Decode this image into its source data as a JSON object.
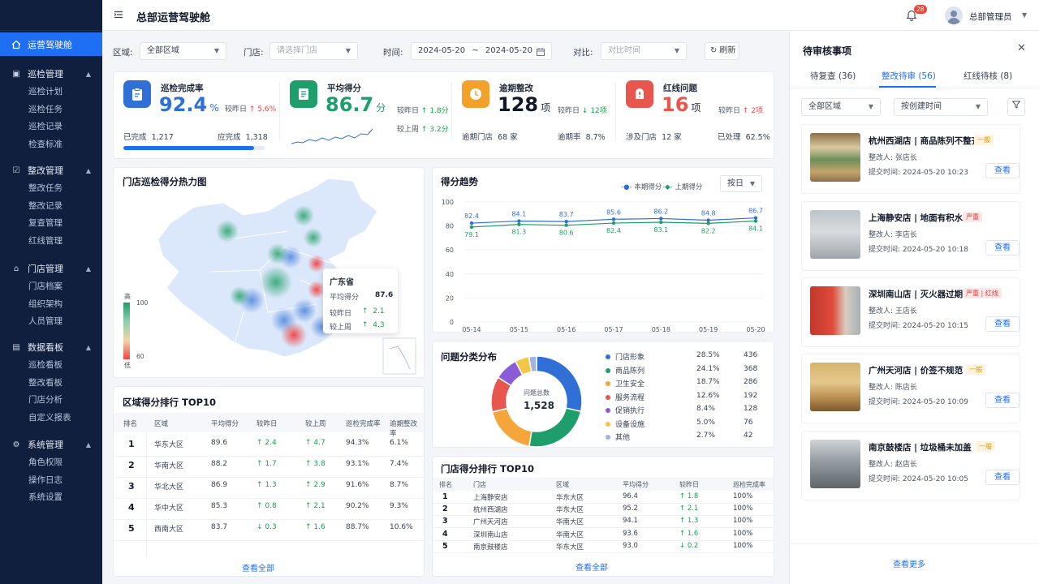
{
  "app": {
    "title": "总部运营驾驶舱",
    "user": "总部管理员",
    "notifications": "28"
  },
  "sidebar": {
    "active": "运营驾驶舱",
    "groups": [
      {
        "label": "巡检管理",
        "items": [
          "巡检计划",
          "巡检任务",
          "巡检记录",
          "检查标准"
        ]
      },
      {
        "label": "整改管理",
        "items": [
          "整改任务",
          "整改记录",
          "复查管理",
          "红线管理"
        ]
      },
      {
        "label": "门店管理",
        "items": [
          "门店档案",
          "组织架构",
          "人员管理"
        ]
      },
      {
        "label": "数据看板",
        "items": [
          "巡检看板",
          "整改看板",
          "门店分析",
          "自定义报表"
        ]
      },
      {
        "label": "系统管理",
        "items": [
          "角色权限",
          "操作日志",
          "系统设置"
        ]
      }
    ]
  },
  "filters": {
    "region_label": "区域:",
    "region_value": "全部区域",
    "store_label": "门店:",
    "store_placeholder": "请选择门店",
    "time_label": "时间:",
    "date_from": "2024-05-20",
    "date_sep": "~",
    "date_to": "2024-05-20",
    "compare_label": "对比:",
    "compare_placeholder": "对比时间",
    "refresh": "刷新"
  },
  "kpis": {
    "completion": {
      "title": "巡检完成率",
      "value": "92.4",
      "unit": "%",
      "cmp_label": "较昨日",
      "cmp_value": "5.6%",
      "done_label": "已完成",
      "done_value": "1,217",
      "due_label": "应完成",
      "due_value": "1,318",
      "progress": 0.924
    },
    "score": {
      "title": "平均得分",
      "value": "86.7",
      "unit": "分",
      "cmp1_label": "较昨日",
      "cmp1_value": "1.8分",
      "cmp2_label": "较上周",
      "cmp2_value": "3.2分"
    },
    "overdue": {
      "title": "逾期整改",
      "value": "128",
      "unit": "项",
      "cmp_label": "较昨日",
      "cmp_value": "12项",
      "stores_label": "逾期门店",
      "stores_value": "68 家",
      "rate_label": "逾期率",
      "rate_value": "8.7%"
    },
    "redline": {
      "title": "红线问题",
      "value": "16",
      "unit": "项",
      "cmp_label": "较昨日",
      "cmp_value": "2项",
      "stores_label": "涉及门店",
      "stores_value": "12 家",
      "handled_label": "已处理",
      "handled_value": "62.5%"
    }
  },
  "heatmap": {
    "title": "门店巡检得分热力图",
    "legend_high": "高",
    "legend_low": "低",
    "legend_max": "100",
    "legend_min": "60",
    "tooltip": {
      "province": "广东省",
      "score_label": "平均得分",
      "score": "87.6",
      "d_label": "较昨日",
      "d_value": "2.1",
      "w_label": "较上周",
      "w_value": "4.3"
    }
  },
  "trend": {
    "title": "得分趋势",
    "legend_current": "本期得分",
    "legend_prev": "上期得分",
    "period": "按日"
  },
  "chart_data": {
    "type": "line",
    "x": [
      "05-14",
      "05-15",
      "05-16",
      "05-17",
      "05-18",
      "05-19",
      "05-20"
    ],
    "series": [
      {
        "name": "本期得分",
        "values": [
          82.4,
          84.1,
          83.7,
          85.6,
          86.2,
          84.8,
          86.7
        ],
        "color": "#2f6fd6"
      },
      {
        "name": "上期得分",
        "values": [
          79.1,
          81.3,
          80.6,
          82.4,
          83.1,
          82.2,
          84.1
        ],
        "color": "#1e9e6a"
      }
    ],
    "ylim": [
      0,
      100
    ],
    "yticks": [
      "0",
      "20",
      "40",
      "60",
      "80",
      "100"
    ]
  },
  "donut": {
    "title": "问题分类分布",
    "center_label": "问题总数",
    "center_value": "1,528",
    "items": [
      {
        "name": "门店形象",
        "pct": "28.5%",
        "count": "436",
        "color": "#2f6fd6",
        "value": 28.5
      },
      {
        "name": "商品陈列",
        "pct": "24.1%",
        "count": "368",
        "color": "#1e9e6a",
        "value": 24.1
      },
      {
        "name": "卫生安全",
        "pct": "18.7%",
        "count": "286",
        "color": "#f5a53a",
        "value": 18.7
      },
      {
        "name": "服务流程",
        "pct": "12.6%",
        "count": "192",
        "color": "#e8574e",
        "value": 12.6
      },
      {
        "name": "促销执行",
        "pct": "8.4%",
        "count": "128",
        "color": "#8b5cd6",
        "value": 8.4
      },
      {
        "name": "设备设施",
        "pct": "5.0%",
        "count": "76",
        "color": "#f3c646",
        "value": 5.0
      },
      {
        "name": "其他",
        "pct": "2.7%",
        "count": "42",
        "color": "#9fb4e0",
        "value": 2.7
      }
    ]
  },
  "region_rank": {
    "title": "区域得分排行 TOP10",
    "headers": [
      "排名",
      "区域",
      "平均得分",
      "较昨日",
      "较上周",
      "巡检完成率",
      "逾期整改率"
    ],
    "rows": [
      [
        "1",
        "华东大区",
        "89.6",
        "↑ 2.4",
        "↑ 4.7",
        "94.3%",
        "6.1%"
      ],
      [
        "2",
        "华南大区",
        "88.2",
        "↑ 1.7",
        "↑ 3.8",
        "93.1%",
        "7.4%"
      ],
      [
        "3",
        "华北大区",
        "86.9",
        "↑ 1.3",
        "↑ 2.9",
        "91.6%",
        "8.7%"
      ],
      [
        "4",
        "华中大区",
        "85.3",
        "↑ 0.8",
        "↑ 2.1",
        "90.2%",
        "9.3%"
      ],
      [
        "5",
        "西南大区",
        "83.7",
        "↓ 0.3",
        "↑ 1.6",
        "88.7%",
        "10.6%"
      ]
    ],
    "view_all": "查看全部"
  },
  "store_rank": {
    "title": "门店得分排行 TOP10",
    "headers": [
      "排名",
      "门店",
      "区域",
      "平均得分",
      "较昨日",
      "巡检完成率"
    ],
    "rows": [
      [
        "1",
        "上海静安店",
        "华东大区",
        "96.4",
        "↑ 1.8",
        "100%"
      ],
      [
        "2",
        "杭州西湖店",
        "华东大区",
        "95.2",
        "↑ 2.1",
        "100%"
      ],
      [
        "3",
        "广州天河店",
        "华南大区",
        "94.1",
        "↑ 1.3",
        "100%"
      ],
      [
        "4",
        "深圳南山店",
        "华南大区",
        "93.6",
        "↑ 1.6",
        "100%"
      ],
      [
        "5",
        "南京鼓楼店",
        "华东大区",
        "93.0",
        "↓ 0.2",
        "100%"
      ]
    ],
    "view_all": "查看全部"
  },
  "review": {
    "title": "待审核事项",
    "tabs": [
      "待复查 (36)",
      "整改待审 (56)",
      "红线待核 (8)"
    ],
    "region_filter": "全部区域",
    "sort_filter": "按创建时间",
    "items": [
      {
        "title": "杭州西湖店 | 商品陈列不整齐",
        "tag": "一般",
        "tag_type": "gen",
        "rect": "整改人: 张店长",
        "time": "提交时间: 2024-05-20 10:23"
      },
      {
        "title": "上海静安店 | 地面有积水",
        "tag": "严重",
        "tag_type": "sev",
        "rect": "整改人: 李店长",
        "time": "提交时间: 2024-05-20 10:18"
      },
      {
        "title": "深圳南山店 | 灭火器过期",
        "tag": "严重 | 红线",
        "tag_type": "sev",
        "rect": "整改人: 王店长",
        "time": "提交时间: 2024-05-20 10:15"
      },
      {
        "title": "广州天河店 | 价签不规范",
        "tag": "一般",
        "tag_type": "gen",
        "rect": "整改人: 陈店长",
        "time": "提交时间: 2024-05-20 10:09"
      },
      {
        "title": "南京鼓楼店 | 垃圾桶未加盖",
        "tag": "一般",
        "tag_type": "gen",
        "rect": "整改人: 赵店长",
        "time": "提交时间: 2024-05-20 10:05"
      }
    ],
    "view_btn": "查看",
    "more": "查看更多"
  }
}
